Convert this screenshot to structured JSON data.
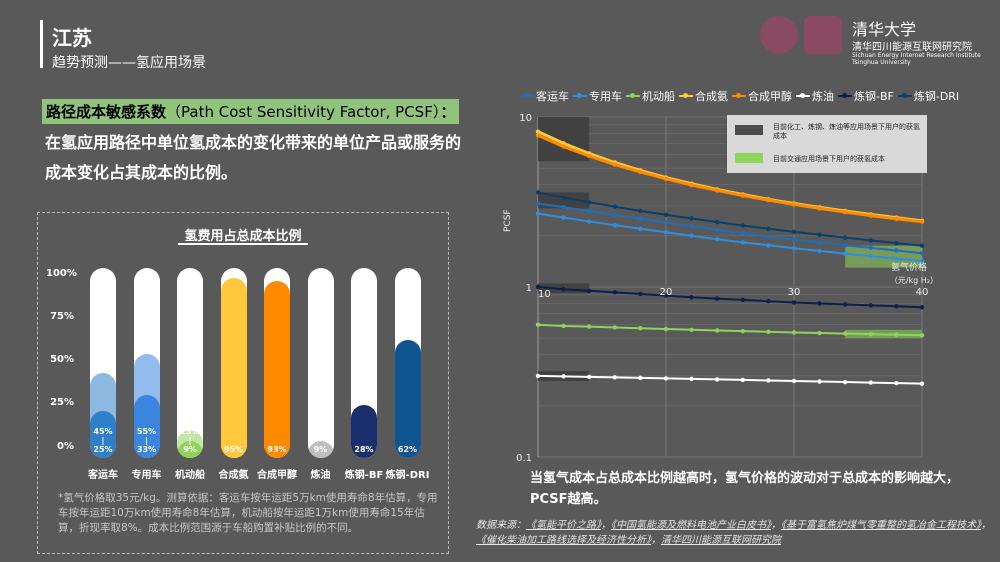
{
  "header": {
    "title": "江苏",
    "subtitle": "趋势预测——氢应用场景"
  },
  "logos": {
    "tsinghua_name": "清华大学",
    "institute_cn": "清华四川能源互联网研究院",
    "institute_en_line1": "Sichuan Energy Internet Research Institute",
    "institute_en_line2": "Tsinghua University"
  },
  "pcsf": {
    "heading_bold": "路径成本敏感系数",
    "heading_en": "（Path Cost Sensitivity Factor, PCSF）",
    "heading_colon": "：",
    "description": "在氢应用路径中单位氢成本的变化带来的单位产品或服务的成本变化占其成本的比例。"
  },
  "bar_chart": {
    "title": "氢费用占总成本比例",
    "y_ticks": [
      "100%",
      "75%",
      "50%",
      "25%",
      "0%"
    ],
    "footnote": "*氢气价格取35元/kg。测算依据：客运车按年运距5万km使用寿命8年估算，专用车按年运距10万km使用寿命8年估算，机动船按年运距1万km使用寿命15年估算，折现率取8%。成本比例范围源于车船购置补贴比例的不同。"
  },
  "line_chart": {
    "y_axis_label": "PCSF",
    "x_axis_label": "氢气价格",
    "x_axis_unit": "（元/kg H₂）",
    "y_tick_labels": [
      "10",
      "1",
      "0.1"
    ],
    "x_tick_labels": [
      "10",
      "20",
      "30",
      "40"
    ],
    "annotation_1": "目前化工、炼钢、炼油等应用场景下用户的获氢成本",
    "annotation_2": "目前交通应用场景下用户的获氢成本"
  },
  "conclusion": "当氢气成本占总成本比例越高时，氢气价格的波动对于总成本的影响越大，PCSF越高。",
  "sources": {
    "prefix": "数据来源：",
    "s1": "《氢能平价之路》",
    "s2": "《中国氢能源及燃料电池产业白皮书》",
    "s3": "《基于富氢焦炉煤气零重整的氢冶金工程技术》",
    "s4": "《催化柴油加工路线选择及经济性分析》",
    "s5": "清华四川能源互联网研究院"
  },
  "chart_data": [
    {
      "type": "bar",
      "title": "氢费用占总成本比例",
      "categories": [
        "客运车",
        "专用车",
        "机动船",
        "合成氨",
        "合成甲醇",
        "炼油",
        "炼钢-BF",
        "炼钢-DRI"
      ],
      "range_low_pct": [
        25,
        33,
        9,
        95,
        93,
        9,
        28,
        62
      ],
      "range_high_pct": [
        45,
        55,
        15,
        95,
        93,
        9,
        28,
        62
      ],
      "low_labels": [
        "25%",
        "33%",
        "9%",
        "95%",
        "93%",
        "9%",
        "28%",
        "62%"
      ],
      "high_labels": [
        "45%",
        "55%",
        "15%",
        "",
        "",
        "",
        "",
        ""
      ],
      "colors": [
        "#2f7fc9",
        "#3a85e0",
        "#8fd45a",
        "#ffc83d",
        "#ff8a00",
        "#bfbfbf",
        "#1a2f6e",
        "#0f5592"
      ],
      "ylim": [
        0,
        100
      ]
    },
    {
      "type": "line",
      "x": [
        10,
        12,
        14,
        16,
        18,
        20,
        22,
        24,
        26,
        28,
        30,
        32,
        34,
        36,
        38,
        40
      ],
      "xlim": [
        10,
        40
      ],
      "ylim": [
        0.1,
        10
      ],
      "y_scale": "log",
      "series": [
        {
          "name": "客运车",
          "color": "#1f6fb8",
          "values": [
            3.1,
            2.95,
            2.8,
            2.66,
            2.52,
            2.4,
            2.28,
            2.17,
            2.07,
            1.98,
            1.9,
            1.83,
            1.76,
            1.7,
            1.64,
            1.58
          ]
        },
        {
          "name": "专用车",
          "color": "#2e8fe0",
          "values": [
            2.7,
            2.56,
            2.43,
            2.31,
            2.2,
            2.1,
            2.0,
            1.91,
            1.83,
            1.76,
            1.69,
            1.63,
            1.57,
            1.52,
            1.47,
            1.42
          ]
        },
        {
          "name": "机动船",
          "color": "#8fd45a",
          "values": [
            0.6,
            0.59,
            0.585,
            0.578,
            0.572,
            0.566,
            0.56,
            0.555,
            0.55,
            0.545,
            0.54,
            0.536,
            0.532,
            0.528,
            0.524,
            0.52
          ]
        },
        {
          "name": "合成氨",
          "color": "#ffc83d",
          "values": [
            8.2,
            7.0,
            6.1,
            5.4,
            4.85,
            4.4,
            4.05,
            3.75,
            3.5,
            3.28,
            3.1,
            2.94,
            2.8,
            2.67,
            2.56,
            2.45
          ]
        },
        {
          "name": "合成甲醇",
          "color": "#ff8a00",
          "values": [
            7.8,
            6.7,
            5.9,
            5.25,
            4.75,
            4.33,
            3.98,
            3.7,
            3.45,
            3.24,
            3.06,
            2.9,
            2.76,
            2.63,
            2.52,
            2.42
          ]
        },
        {
          "name": "炼油",
          "color": "#ffffff",
          "values": [
            0.3,
            0.298,
            0.296,
            0.294,
            0.292,
            0.29,
            0.288,
            0.286,
            0.284,
            0.282,
            0.28,
            0.278,
            0.276,
            0.274,
            0.272,
            0.27
          ]
        },
        {
          "name": "炼钢-BF",
          "color": "#0e1f4f",
          "values": [
            1.0,
            0.97,
            0.95,
            0.93,
            0.91,
            0.89,
            0.87,
            0.855,
            0.84,
            0.825,
            0.81,
            0.8,
            0.79,
            0.78,
            0.77,
            0.76
          ]
        },
        {
          "name": "炼钢-DRI",
          "color": "#0a3f6c",
          "values": [
            3.6,
            3.36,
            3.15,
            2.97,
            2.8,
            2.66,
            2.53,
            2.41,
            2.3,
            2.2,
            2.11,
            2.03,
            1.95,
            1.88,
            1.81,
            1.75
          ]
        }
      ],
      "legend_placement": "top"
    }
  ]
}
